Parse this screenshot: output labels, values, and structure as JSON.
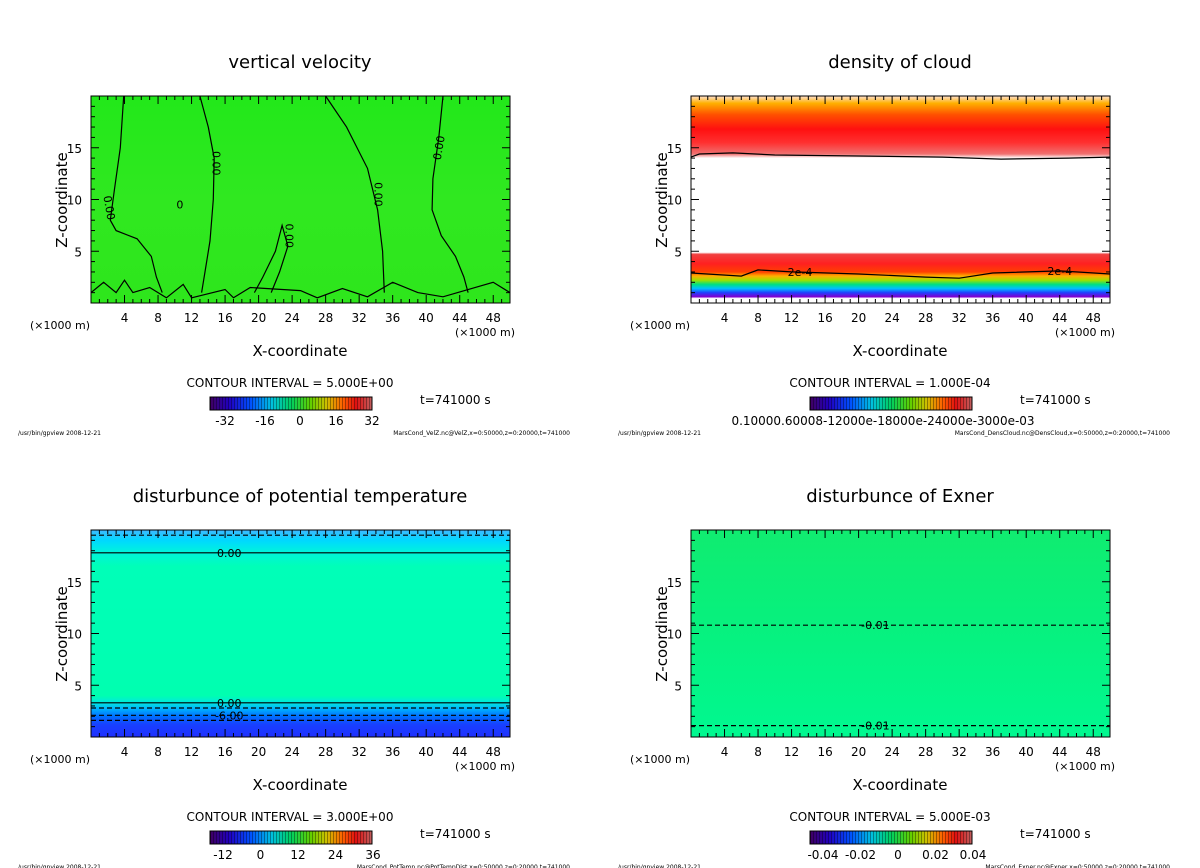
{
  "chart_data": [
    {
      "type": "heatmap",
      "title": "vertical velocity",
      "xlabel": "X-coordinate",
      "ylabel": "Z-coordinate",
      "x_unit": "(×1000 m)",
      "y_unit": "(×1000 m)",
      "xlim": [
        0,
        50
      ],
      "ylim": [
        0,
        20
      ],
      "xticks": [
        4,
        8,
        12,
        16,
        20,
        24,
        28,
        32,
        36,
        40,
        44,
        48
      ],
      "yticks": [
        5,
        10,
        15
      ],
      "contour_interval": "CONTOUR INTERVAL = 5.000E+00",
      "colorbar_labels": [
        "-32",
        "-16",
        "0",
        "16",
        "32"
      ],
      "time": "t=741000 s",
      "footer_left": "/usr/bin/gpview  2008-12-21",
      "footer_right": "MarsCond_VelZ.nc@VelZ,x=0:50000,z=0:20000,t=741000",
      "field_profile": [
        [
          20,
          "#22e81a"
        ],
        [
          10,
          "#30e820"
        ],
        [
          0,
          "#2ee61c"
        ]
      ],
      "contours": [
        {
          "style": "solid",
          "points": [
            [
              3.9,
              20
            ],
            [
              3.5,
              15
            ],
            [
              2.8,
              11
            ],
            [
              2.3,
              8
            ],
            [
              3,
              7
            ],
            [
              5.5,
              6.2
            ],
            [
              7.2,
              4.5
            ],
            [
              7.8,
              2.5
            ],
            [
              8.5,
              1
            ]
          ],
          "label": "0.00",
          "label_at": [
            2.2,
            9.2
          ],
          "label_rot": 80
        },
        {
          "style": "solid",
          "points": [
            [
              13,
              20
            ],
            [
              14,
              17
            ],
            [
              14.7,
              14
            ],
            [
              14.6,
              10
            ],
            [
              14.2,
              6
            ],
            [
              13.6,
              3
            ],
            [
              13.2,
              1
            ]
          ],
          "label": "0.00",
          "label_at": [
            15,
            13.5
          ],
          "label_rot": 90
        },
        {
          "style": "solid",
          "points": [
            [
              21.5,
              1
            ],
            [
              22.5,
              3
            ],
            [
              23.5,
              5.5
            ],
            [
              22.8,
              7.5
            ],
            [
              22,
              5
            ],
            [
              20.5,
              2.5
            ],
            [
              19.5,
              1
            ]
          ],
          "label": "0.00",
          "label_at": [
            23.7,
            6.5
          ],
          "label_rot": 90
        },
        {
          "style": "solid",
          "points": [
            [
              28,
              20
            ],
            [
              30.5,
              17
            ],
            [
              33,
              13
            ],
            [
              34.2,
              9
            ],
            [
              34.8,
              5
            ],
            [
              35,
              1
            ]
          ],
          "label": "0.00",
          "label_at": [
            34.3,
            10.5
          ],
          "label_rot": 90
        },
        {
          "style": "solid",
          "points": [
            [
              42,
              20
            ],
            [
              41.5,
              16
            ],
            [
              40.8,
              12
            ],
            [
              40.7,
              9
            ],
            [
              41.8,
              6.5
            ],
            [
              43.5,
              4.5
            ],
            [
              44.5,
              2.5
            ],
            [
              45,
              1
            ]
          ],
          "label": "0.00",
          "label_at": [
            41.5,
            15
          ],
          "label_rot": -80
        },
        {
          "style": "solid",
          "points": [
            [
              0,
              1
            ],
            [
              1.5,
              2
            ],
            [
              3,
              1
            ],
            [
              4,
              2.2
            ],
            [
              5,
              1
            ],
            [
              7,
              1.5
            ],
            [
              9,
              0.5
            ],
            [
              11,
              1.8
            ],
            [
              12,
              0.5
            ],
            [
              16,
              1.3
            ],
            [
              17,
              0.5
            ],
            [
              19,
              1.5
            ],
            [
              25,
              1.2
            ],
            [
              27,
              0.5
            ],
            [
              30,
              1.4
            ],
            [
              33,
              0.6
            ],
            [
              36,
              2
            ],
            [
              39,
              1
            ],
            [
              42,
              0.6
            ],
            [
              48,
              2
            ],
            [
              50,
              1
            ]
          ],
          "label": "0",
          "label_at": [
            10.6,
            9.5
          ],
          "label_rot": 0
        }
      ]
    },
    {
      "type": "heatmap",
      "title": "density of cloud",
      "xlabel": "X-coordinate",
      "ylabel": "Z-coordinate",
      "x_unit": "(×1000 m)",
      "y_unit": "(×1000 m)",
      "xlim": [
        0,
        50
      ],
      "ylim": [
        0,
        20
      ],
      "xticks": [
        4,
        8,
        12,
        16,
        20,
        24,
        28,
        32,
        36,
        40,
        44,
        48
      ],
      "yticks": [
        5,
        10,
        15
      ],
      "contour_interval": "CONTOUR INTERVAL = 1.000E-04",
      "colorbar_labels": [
        "0.10000.60008-12000e-18000e-24000e-3000e-03"
      ],
      "time": "t=741000 s",
      "footer_left": "/usr/bin/gpview  2008-12-21",
      "footer_right": "MarsCond_DensCloud.nc@DensCloud,x=0:50000,z=0:20000,t=741000",
      "field_profile": [
        [
          20,
          "#ffe0d0"
        ],
        [
          19.3,
          "#ffb000"
        ],
        [
          18.2,
          "#ff5000"
        ],
        [
          16.8,
          "#ff1010"
        ],
        [
          15.5,
          "#ff3030"
        ],
        [
          14.4,
          "#f07070"
        ],
        [
          14.0,
          "#ffffff"
        ],
        [
          4.9,
          "#ffffff"
        ],
        [
          4.7,
          "#f04040"
        ],
        [
          3.8,
          "#ff2020"
        ],
        [
          3.0,
          "#ff4000"
        ],
        [
          2.6,
          "#ffb000"
        ],
        [
          2.2,
          "#a0e000"
        ],
        [
          1.8,
          "#00e080"
        ],
        [
          1.4,
          "#00c0ff"
        ],
        [
          1.0,
          "#2040ff"
        ],
        [
          0.6,
          "#8000d0"
        ],
        [
          0.45,
          "#ffffff"
        ],
        [
          0,
          "#ffffff"
        ]
      ],
      "contours": [
        {
          "style": "solid",
          "points": [
            [
              0,
              14.1
            ],
            [
              1,
              14.4
            ],
            [
              5,
              14.5
            ],
            [
              10,
              14.3
            ],
            [
              20,
              14.2
            ],
            [
              30,
              14.1
            ],
            [
              37,
              13.9
            ],
            [
              45,
              14
            ],
            [
              50,
              14.1
            ]
          ],
          "label": "",
          "label_at": [
            0,
            0
          ],
          "label_rot": 0
        },
        {
          "style": "solid",
          "points": [
            [
              0,
              2.9
            ],
            [
              6,
              2.6
            ],
            [
              8,
              3.2
            ],
            [
              12,
              3
            ],
            [
              20,
              2.8
            ],
            [
              28,
              2.5
            ],
            [
              32,
              2.4
            ],
            [
              36,
              2.9
            ],
            [
              44,
              3.1
            ],
            [
              50,
              2.8
            ]
          ],
          "label": "2e-4",
          "label_at": [
            13,
            3.0
          ],
          "label_rot": 0
        },
        {
          "style": "solid",
          "points": [
            [
              0,
              0
            ],
            [
              0,
              0
            ]
          ],
          "label": "2e-4",
          "label_at": [
            44,
            3.1
          ],
          "label_rot": 0
        }
      ]
    },
    {
      "type": "heatmap",
      "title": "disturbunce of potential temperature",
      "xlabel": "X-coordinate",
      "ylabel": "Z-coordinate",
      "x_unit": "(×1000 m)",
      "y_unit": "(×1000 m)",
      "xlim": [
        0,
        50
      ],
      "ylim": [
        0,
        20
      ],
      "xticks": [
        4,
        8,
        12,
        16,
        20,
        24,
        28,
        32,
        36,
        40,
        44,
        48
      ],
      "yticks": [
        5,
        10,
        15
      ],
      "contour_interval": "CONTOUR INTERVAL = 3.000E+00",
      "colorbar_labels": [
        "-12",
        "0",
        "12",
        "24",
        "36"
      ],
      "time": "t=741000 s",
      "footer_left": "/usr/bin/gpview  2008-12-21",
      "footer_right": "MarsCond_PotTemp.nc@PotTempDist,x=0:50000,z=0:20000,t=741000",
      "field_profile": [
        [
          20,
          "#40b8ff"
        ],
        [
          19,
          "#00d8ff"
        ],
        [
          18,
          "#00f0e0"
        ],
        [
          16.5,
          "#00ffb8"
        ],
        [
          4,
          "#00ffb0"
        ],
        [
          3.3,
          "#00e8e0"
        ],
        [
          2.7,
          "#00b0ff"
        ],
        [
          2.0,
          "#0070ff"
        ],
        [
          1.2,
          "#1840ff"
        ],
        [
          0,
          "#2030ff"
        ]
      ],
      "contours": [
        {
          "style": "dashed",
          "points": [
            [
              0,
              19.5
            ],
            [
              50,
              19.5
            ]
          ],
          "label": "",
          "label_at": [
            0,
            0
          ],
          "label_rot": 0
        },
        {
          "style": "solid",
          "points": [
            [
              0,
              17.8
            ],
            [
              50,
              17.8
            ]
          ],
          "label": "0.00",
          "label_at": [
            16.5,
            17.8
          ],
          "label_rot": 0
        },
        {
          "style": "solid",
          "points": [
            [
              0,
              3.3
            ],
            [
              50,
              3.3
            ]
          ],
          "label": "0.00",
          "label_at": [
            16.5,
            3.3
          ],
          "label_rot": 0
        },
        {
          "style": "dashed",
          "points": [
            [
              0,
              2.8
            ],
            [
              50,
              2.8
            ]
          ],
          "label": "",
          "label_at": [
            0,
            0
          ],
          "label_rot": 0
        },
        {
          "style": "dashed",
          "points": [
            [
              0,
              2.1
            ],
            [
              50,
              2.1
            ]
          ],
          "label": "-6.00",
          "label_at": [
            16.5,
            2.1
          ],
          "label_rot": 0
        },
        {
          "style": "dashed",
          "points": [
            [
              0,
              1.6
            ],
            [
              50,
              1.6
            ]
          ],
          "label": "",
          "label_at": [
            0,
            0
          ],
          "label_rot": 0
        }
      ]
    },
    {
      "type": "heatmap",
      "title": "disturbunce of Exner",
      "xlabel": "X-coordinate",
      "ylabel": "Z-coordinate",
      "x_unit": "(×1000 m)",
      "y_unit": "(×1000 m)",
      "xlim": [
        0,
        50
      ],
      "ylim": [
        0,
        20
      ],
      "xticks": [
        4,
        8,
        12,
        16,
        20,
        24,
        28,
        32,
        36,
        40,
        44,
        48
      ],
      "yticks": [
        5,
        10,
        15
      ],
      "contour_interval": "CONTOUR INTERVAL = 5.000E-03",
      "colorbar_labels": [
        "-0.04",
        "-0.02",
        "0",
        "0.02",
        "0.04"
      ],
      "time": "t=741000 s",
      "footer_left": "/usr/bin/gpview  2008-12-21",
      "footer_right": "MarsCond_Exner.nc@Exner,x=0:50000,z=0:20000,t=741000",
      "field_profile": [
        [
          20,
          "#10ec70"
        ],
        [
          12,
          "#08f07c"
        ],
        [
          0,
          "#00f890"
        ]
      ],
      "contours": [
        {
          "style": "dashed",
          "points": [
            [
              0,
              10.8
            ],
            [
              50,
              10.8
            ]
          ],
          "label": "-0.01",
          "label_at": [
            22,
            10.8
          ],
          "label_rot": 0
        },
        {
          "style": "dashed",
          "points": [
            [
              0,
              1.1
            ],
            [
              50,
              1.1
            ]
          ],
          "label": "-0.01",
          "label_at": [
            22,
            1.1
          ],
          "label_rot": 0
        }
      ]
    }
  ]
}
